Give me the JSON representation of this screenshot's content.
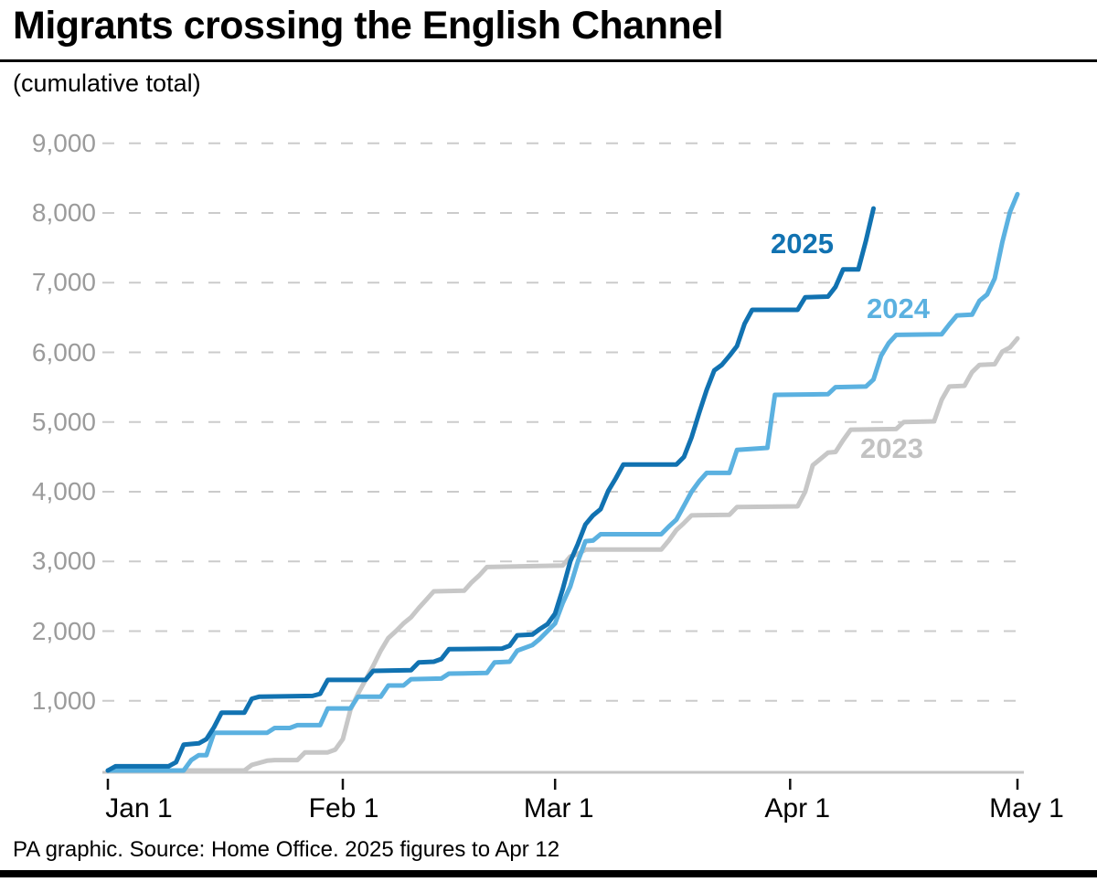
{
  "header": {
    "title": "Migrants crossing the English Channel",
    "subtitle": "(cumulative total)"
  },
  "footer": {
    "source": "PA graphic. Source: Home Office. 2025 figures to Apr 12"
  },
  "chart_data": {
    "type": "line",
    "title": "Migrants crossing the English Channel",
    "subtitle": "(cumulative total)",
    "x_axis": {
      "tick_days": [
        0,
        31,
        59,
        90,
        120
      ],
      "tick_labels": [
        "Jan 1",
        "Feb 1",
        "Mar 1",
        "Apr 1",
        "May 1"
      ],
      "range_days": [
        0,
        120
      ]
    },
    "y_axis": {
      "tick_values": [
        1000,
        2000,
        3000,
        4000,
        5000,
        6000,
        7000,
        8000,
        9000
      ],
      "tick_labels": [
        "1,000",
        "2,000",
        "3,000",
        "4,000",
        "5,000",
        "6,000",
        "7,000",
        "8,000",
        "9,000"
      ],
      "range": [
        0,
        9400
      ]
    },
    "grid": {
      "show": true,
      "color": "#cbcbcb",
      "dash": [
        13,
        16
      ]
    },
    "axis_line_color": "#c4c4c4",
    "tick_color": "#111111",
    "y_label_color": "#9b9b9b",
    "x_label_color": "#000000",
    "series": [
      {
        "name": "2025",
        "color": "#1172b1",
        "label_pos": {
          "x": 843,
          "y": 249
        },
        "points": [
          [
            0,
            0
          ],
          [
            1,
            60
          ],
          [
            8,
            60
          ],
          [
            9,
            120
          ],
          [
            10,
            370
          ],
          [
            12,
            390
          ],
          [
            13,
            450
          ],
          [
            14,
            620
          ],
          [
            15,
            830
          ],
          [
            18,
            830
          ],
          [
            19,
            1030
          ],
          [
            20,
            1060
          ],
          [
            27,
            1070
          ],
          [
            28,
            1100
          ],
          [
            29,
            1300
          ],
          [
            34,
            1300
          ],
          [
            35,
            1430
          ],
          [
            40,
            1440
          ],
          [
            41,
            1550
          ],
          [
            43,
            1560
          ],
          [
            44,
            1600
          ],
          [
            45,
            1740
          ],
          [
            52,
            1750
          ],
          [
            53,
            1790
          ],
          [
            54,
            1940
          ],
          [
            56,
            1950
          ],
          [
            57,
            2030
          ],
          [
            58,
            2100
          ],
          [
            59,
            2250
          ],
          [
            60,
            2600
          ],
          [
            61,
            3000
          ],
          [
            62,
            3250
          ],
          [
            63,
            3530
          ],
          [
            64,
            3660
          ],
          [
            65,
            3750
          ],
          [
            66,
            4010
          ],
          [
            67,
            4190
          ],
          [
            68,
            4390
          ],
          [
            75,
            4390
          ],
          [
            76,
            4500
          ],
          [
            77,
            4780
          ],
          [
            78,
            5130
          ],
          [
            79,
            5460
          ],
          [
            80,
            5740
          ],
          [
            81,
            5820
          ],
          [
            82,
            5950
          ],
          [
            83,
            6090
          ],
          [
            84,
            6410
          ],
          [
            85,
            6610
          ],
          [
            91,
            6610
          ],
          [
            92,
            6790
          ],
          [
            95,
            6800
          ],
          [
            96,
            6940
          ],
          [
            97,
            7190
          ],
          [
            99,
            7190
          ],
          [
            100,
            7600
          ],
          [
            101,
            8064
          ]
        ]
      },
      {
        "name": "2024",
        "color": "#5bb1e0",
        "label_pos": {
          "x": 948,
          "y": 320
        },
        "points": [
          [
            0,
            0
          ],
          [
            10,
            0
          ],
          [
            11,
            150
          ],
          [
            12,
            220
          ],
          [
            13,
            220
          ],
          [
            14,
            540
          ],
          [
            21,
            540
          ],
          [
            22,
            610
          ],
          [
            24,
            610
          ],
          [
            25,
            650
          ],
          [
            28,
            650
          ],
          [
            29,
            890
          ],
          [
            32,
            890
          ],
          [
            33,
            1060
          ],
          [
            36,
            1060
          ],
          [
            37,
            1220
          ],
          [
            39,
            1220
          ],
          [
            40,
            1310
          ],
          [
            44,
            1320
          ],
          [
            45,
            1390
          ],
          [
            50,
            1400
          ],
          [
            51,
            1550
          ],
          [
            53,
            1560
          ],
          [
            54,
            1720
          ],
          [
            56,
            1800
          ],
          [
            57,
            1890
          ],
          [
            58,
            2000
          ],
          [
            59,
            2110
          ],
          [
            60,
            2400
          ],
          [
            61,
            2640
          ],
          [
            62,
            3000
          ],
          [
            63,
            3290
          ],
          [
            64,
            3300
          ],
          [
            65,
            3390
          ],
          [
            73,
            3390
          ],
          [
            74,
            3500
          ],
          [
            75,
            3600
          ],
          [
            76,
            3800
          ],
          [
            77,
            4000
          ],
          [
            78,
            4150
          ],
          [
            79,
            4270
          ],
          [
            82,
            4270
          ],
          [
            83,
            4600
          ],
          [
            87,
            4630
          ],
          [
            88,
            5390
          ],
          [
            95,
            5400
          ],
          [
            96,
            5500
          ],
          [
            100,
            5510
          ],
          [
            101,
            5610
          ],
          [
            102,
            5950
          ],
          [
            103,
            6130
          ],
          [
            104,
            6250
          ],
          [
            110,
            6260
          ],
          [
            111,
            6400
          ],
          [
            112,
            6530
          ],
          [
            114,
            6540
          ],
          [
            115,
            6740
          ],
          [
            116,
            6830
          ],
          [
            117,
            7060
          ],
          [
            118,
            7580
          ],
          [
            119,
            8010
          ],
          [
            120,
            8270
          ]
        ]
      },
      {
        "name": "2023",
        "color": "#c7c7c7",
        "label_color": "#c2c2c2",
        "label_pos": {
          "x": 941,
          "y": 473
        },
        "points": [
          [
            0,
            0
          ],
          [
            18,
            0
          ],
          [
            19,
            80
          ],
          [
            20,
            110
          ],
          [
            21,
            140
          ],
          [
            22,
            150
          ],
          [
            25,
            150
          ],
          [
            26,
            260
          ],
          [
            29,
            260
          ],
          [
            30,
            300
          ],
          [
            31,
            450
          ],
          [
            32,
            870
          ],
          [
            33,
            1100
          ],
          [
            34,
            1300
          ],
          [
            35,
            1500
          ],
          [
            36,
            1720
          ],
          [
            37,
            1900
          ],
          [
            38,
            2000
          ],
          [
            39,
            2110
          ],
          [
            40,
            2200
          ],
          [
            41,
            2330
          ],
          [
            42,
            2450
          ],
          [
            43,
            2570
          ],
          [
            47,
            2580
          ],
          [
            48,
            2700
          ],
          [
            49,
            2800
          ],
          [
            50,
            2920
          ],
          [
            60,
            2940
          ],
          [
            61,
            3070
          ],
          [
            62,
            3105
          ],
          [
            63,
            3170
          ],
          [
            73,
            3170
          ],
          [
            74,
            3300
          ],
          [
            75,
            3450
          ],
          [
            76,
            3550
          ],
          [
            77,
            3660
          ],
          [
            82,
            3670
          ],
          [
            83,
            3780
          ],
          [
            91,
            3790
          ],
          [
            92,
            4000
          ],
          [
            93,
            4380
          ],
          [
            94,
            4470
          ],
          [
            95,
            4560
          ],
          [
            96,
            4570
          ],
          [
            97,
            4740
          ],
          [
            98,
            4890
          ],
          [
            104,
            4900
          ],
          [
            105,
            5000
          ],
          [
            109,
            5010
          ],
          [
            110,
            5320
          ],
          [
            111,
            5510
          ],
          [
            113,
            5520
          ],
          [
            114,
            5715
          ],
          [
            115,
            5820
          ],
          [
            117,
            5830
          ],
          [
            118,
            6010
          ],
          [
            119,
            6070
          ],
          [
            120,
            6200
          ]
        ]
      }
    ]
  }
}
